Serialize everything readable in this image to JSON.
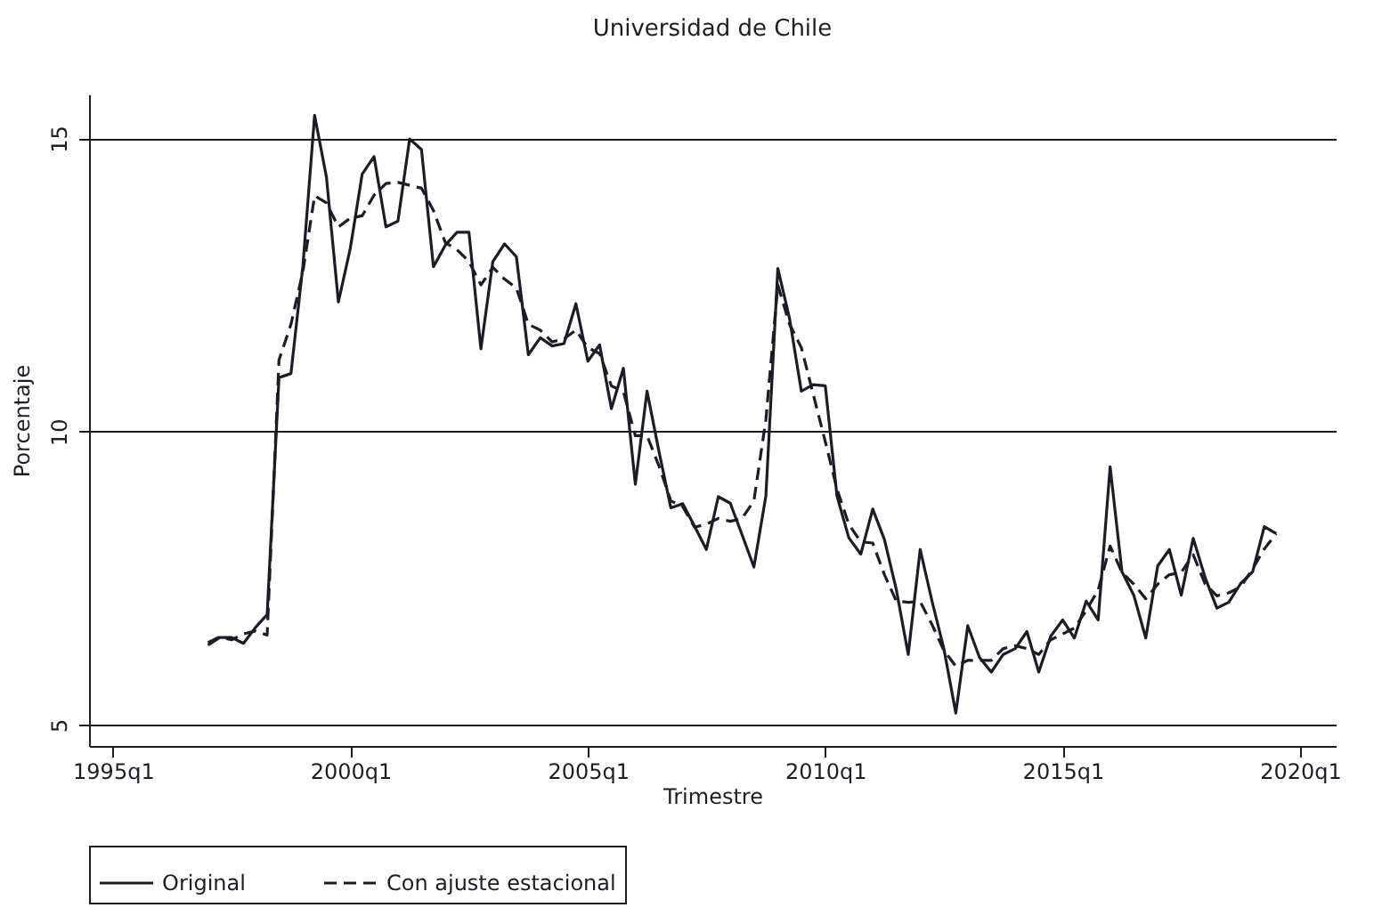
{
  "chart_data": {
    "type": "line",
    "title": "Universidad de Chile",
    "xlabel": "Trimestre",
    "ylabel": "Porcentaje",
    "x": [
      "1997-01",
      "1997-04",
      "1997-07",
      "1997-10",
      "1998-01",
      "1998-04",
      "1998-07",
      "1998-10",
      "1999-01",
      "1999-04",
      "1999-07",
      "1999-10",
      "2000-01",
      "2000-04",
      "2000-07",
      "2000-10",
      "2001-01",
      "2001-04",
      "2001-07",
      "2001-10",
      "2002-01",
      "2002-04",
      "2002-07",
      "2002-10",
      "2003-01",
      "2003-04",
      "2003-07",
      "2003-10",
      "2004-01",
      "2004-04",
      "2004-07",
      "2004-10",
      "2005-01",
      "2005-04",
      "2005-07",
      "2005-10",
      "2006-01",
      "2006-04",
      "2006-07",
      "2006-10",
      "2007-01",
      "2007-04",
      "2007-07",
      "2007-10",
      "2008-01",
      "2008-04",
      "2008-07",
      "2008-10",
      "2009-01",
      "2009-04",
      "2009-07",
      "2009-10",
      "2010-01",
      "2010-04",
      "2010-07",
      "2010-10",
      "2011-01",
      "2011-04",
      "2011-07",
      "2011-10",
      "2012-01",
      "2012-04",
      "2012-07",
      "2012-10",
      "2013-01",
      "2013-04",
      "2013-07",
      "2013-10",
      "2014-01",
      "2014-04",
      "2014-07",
      "2014-10",
      "2015-01",
      "2015-04",
      "2015-07",
      "2015-10",
      "2016-01",
      "2016-04",
      "2016-07",
      "2016-10",
      "2017-01",
      "2017-04",
      "2017-07",
      "2017-10",
      "2018-01",
      "2018-04",
      "2018-07",
      "2018-10",
      "2019-01",
      "2019-04",
      "2019-07"
    ],
    "series": [
      {
        "name": "Original",
        "color": "#1c1c28",
        "line_style": "solid",
        "values": [
          6.36,
          6.49,
          6.49,
          6.39,
          6.66,
          6.88,
          10.92,
          10.99,
          12.83,
          15.39,
          14.34,
          12.21,
          13.13,
          14.39,
          14.69,
          13.49,
          13.59,
          14.99,
          14.81,
          12.81,
          13.18,
          13.4,
          13.4,
          11.41,
          12.9,
          13.2,
          12.98,
          11.31,
          11.6,
          11.46,
          11.5,
          12.18,
          11.2,
          11.48,
          10.39,
          11.08,
          9.1,
          10.69,
          9.67,
          8.7,
          8.77,
          8.39,
          7.99,
          8.89,
          8.78,
          8.24,
          7.69,
          8.9,
          12.78,
          11.93,
          10.69,
          10.8,
          10.78,
          8.9,
          8.19,
          7.91,
          8.68,
          8.16,
          7.31,
          6.2,
          7.99,
          7.11,
          6.3,
          5.2,
          6.69,
          6.15,
          5.9,
          6.2,
          6.3,
          6.59,
          5.9,
          6.51,
          6.79,
          6.48,
          7.11,
          6.79,
          9.4,
          7.61,
          7.21,
          6.48,
          7.71,
          7.99,
          7.21,
          8.18,
          7.51,
          6.99,
          7.09,
          7.41,
          7.61,
          8.38,
          8.26
        ]
      },
      {
        "name": "Con ajuste estacional",
        "color": "#1c1c28",
        "line_style": "dashed",
        "values": [
          6.4,
          6.5,
          6.45,
          6.55,
          6.6,
          6.53,
          11.22,
          11.83,
          12.73,
          14.02,
          13.9,
          13.49,
          13.64,
          13.68,
          14.03,
          14.23,
          14.25,
          14.2,
          14.15,
          13.77,
          13.22,
          13.1,
          12.9,
          12.5,
          12.8,
          12.6,
          12.45,
          11.83,
          11.73,
          11.53,
          11.58,
          11.73,
          11.43,
          11.33,
          10.78,
          10.68,
          9.93,
          9.93,
          9.42,
          8.82,
          8.72,
          8.37,
          8.42,
          8.52,
          8.47,
          8.52,
          8.82,
          10.2,
          12.5,
          11.83,
          11.43,
          10.63,
          9.83,
          9.02,
          8.42,
          8.12,
          8.1,
          7.56,
          7.11,
          7.09,
          7.1,
          6.71,
          6.27,
          6.0,
          6.1,
          6.1,
          6.1,
          6.3,
          6.35,
          6.3,
          6.2,
          6.45,
          6.55,
          6.65,
          6.95,
          7.3,
          8.05,
          7.6,
          7.4,
          7.15,
          7.4,
          7.56,
          7.6,
          7.9,
          7.4,
          7.2,
          7.25,
          7.35,
          7.66,
          8.0,
          8.26
        ]
      }
    ],
    "xlim": [
      "1994-07",
      "2020-10"
    ],
    "xticks": [
      {
        "value": "1995-01",
        "label": "1995q1"
      },
      {
        "value": "2000-01",
        "label": "2000q1"
      },
      {
        "value": "2005-01",
        "label": "2005q1"
      },
      {
        "value": "2010-01",
        "label": "2010q1"
      },
      {
        "value": "2015-01",
        "label": "2015q1"
      },
      {
        "value": "2020-01",
        "label": "2020q1"
      }
    ],
    "ylim": [
      4.64,
      15.75
    ],
    "yticks": [
      5,
      10,
      15
    ],
    "grid": "y",
    "legend": "bottom"
  }
}
